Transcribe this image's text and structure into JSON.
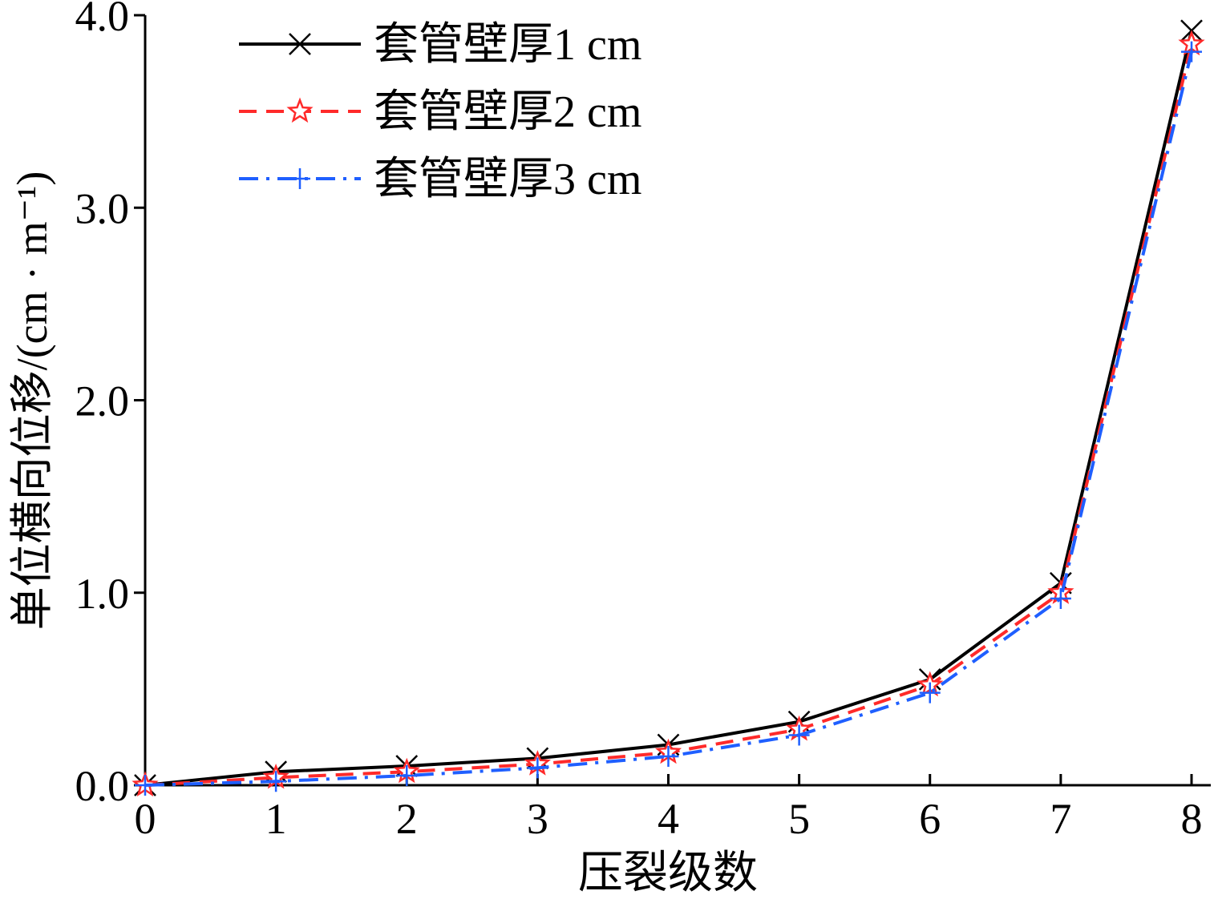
{
  "chart_data": {
    "type": "line",
    "xlabel": "压裂级数",
    "ylabel": "单位横向位移/(cm · m⁻¹)",
    "xlim": [
      0,
      8
    ],
    "ylim": [
      0,
      4
    ],
    "x": [
      0,
      1,
      2,
      3,
      4,
      5,
      6,
      7,
      8
    ],
    "xticks": [
      "0",
      "1",
      "2",
      "3",
      "4",
      "5",
      "6",
      "7",
      "8"
    ],
    "yticks": [
      {
        "value": 0,
        "label": "0.0"
      },
      {
        "value": 1,
        "label": "1.0"
      },
      {
        "value": 2,
        "label": "2.0"
      },
      {
        "value": 3,
        "label": "3.0"
      },
      {
        "value": 4,
        "label": "4.0"
      }
    ],
    "grid": false,
    "legend_position": "top-left",
    "series": [
      {
        "name": "套管壁厚1 cm",
        "color": "#000000",
        "dash": "solid",
        "marker": "x",
        "values": [
          0.0,
          0.07,
          0.1,
          0.14,
          0.21,
          0.33,
          0.55,
          1.05,
          3.92
        ]
      },
      {
        "name": "套管壁厚2 cm",
        "color": "#ff2a2a",
        "dash": "dashed",
        "marker": "star",
        "values": [
          0.0,
          0.04,
          0.07,
          0.11,
          0.17,
          0.29,
          0.52,
          1.0,
          3.85
        ]
      },
      {
        "name": "套管壁厚3 cm",
        "color": "#1f5fff",
        "dash": "dashdot",
        "marker": "plus",
        "values": [
          0.0,
          0.02,
          0.05,
          0.09,
          0.15,
          0.26,
          0.48,
          0.97,
          3.81
        ]
      }
    ]
  }
}
